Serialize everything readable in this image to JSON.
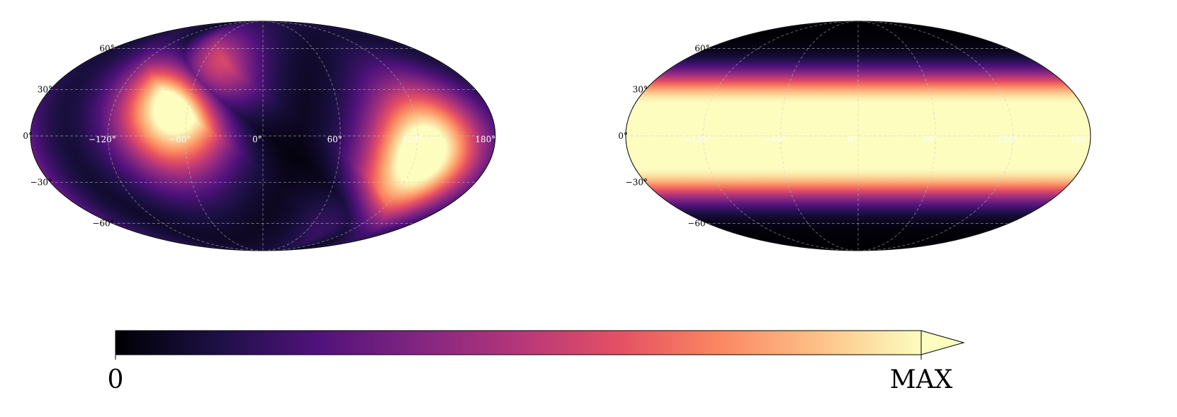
{
  "chart_data": [
    {
      "type": "heatmap",
      "projection": "mollweide",
      "title": "",
      "grid": true,
      "lon_ticks": [
        "−120°",
        "−60°",
        "0°",
        "60°",
        "120°",
        "180°"
      ],
      "lon_tick_values": [
        -120,
        -60,
        0,
        60,
        120,
        180
      ],
      "lat_ticks": [
        "−60°",
        "−30°",
        "0°",
        "30°",
        "60°"
      ],
      "lat_tick_values": [
        -60,
        -30,
        0,
        30,
        60
      ],
      "sources": [
        {
          "lon": -68,
          "lat": 20,
          "peak": 1.0,
          "width_deg": 30
        },
        {
          "lon": 125,
          "lat": -12,
          "peak": 1.0,
          "width_deg": 30
        }
      ],
      "description_of_field": "two hot spots connected by a dark band"
    },
    {
      "type": "heatmap",
      "projection": "mollweide",
      "title": "",
      "grid": true,
      "lon_ticks": [
        "−120°",
        "−60°",
        "0°",
        "60°",
        "120°",
        "180°"
      ],
      "lon_tick_values": [
        -120,
        -60,
        0,
        60,
        120,
        180
      ],
      "lat_ticks": [
        "−60°",
        "−30°",
        "0°",
        "30°",
        "60°"
      ],
      "lat_tick_values": [
        -60,
        -30,
        0,
        30,
        60
      ],
      "band": {
        "center_lat": 0,
        "flat_half_width_deg": 20,
        "falloff_deg": 38
      }
    }
  ],
  "colorbar": {
    "colormap": "magma",
    "min_label": "0",
    "max_label": "MAX",
    "extend": "max",
    "stops": [
      "#000004",
      "#1c1044",
      "#4f127b",
      "#812581",
      "#b5367a",
      "#e55064",
      "#fb8761",
      "#fec287",
      "#fcfdbf"
    ]
  }
}
